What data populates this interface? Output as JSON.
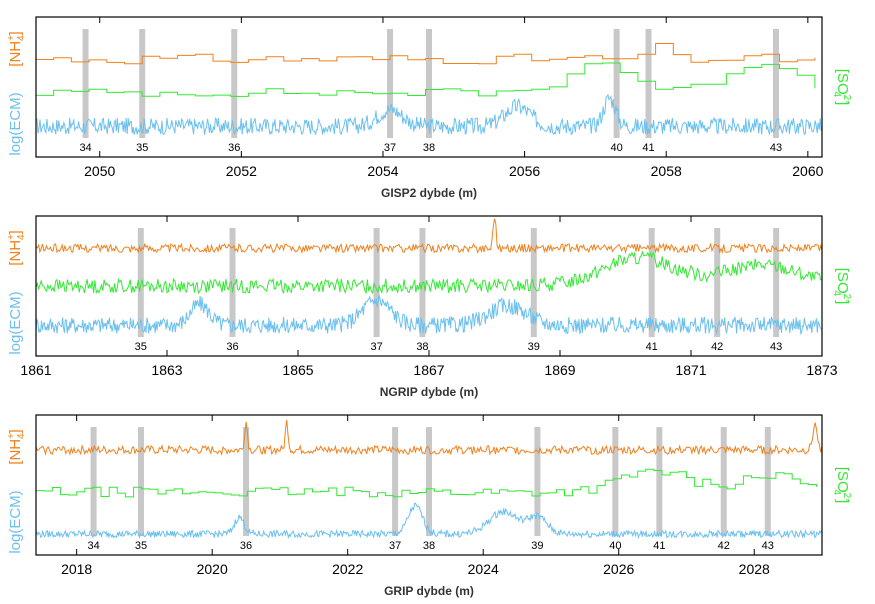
{
  "chart_data": [
    {
      "type": "line",
      "xlabel": "GISP2 dybde (m)",
      "xlim": [
        2049.1,
        2060.2
      ],
      "xticks": [
        2050,
        2052,
        2054,
        2056,
        2058,
        2060
      ],
      "left_labels": {
        "ecm": "log(ECM)",
        "nh4": "[NH4+]"
      },
      "right_label": "[SO4 2-]",
      "series": [
        {
          "name": "log(ECM)",
          "color": "#6cc0ef",
          "baseline": 0.22,
          "noise": 0.06,
          "step": 0.014,
          "bumps": [
            [
              2054.1,
              0.12,
              0.25
            ],
            [
              2055.9,
              0.14,
              0.25
            ],
            [
              2057.2,
              0.2,
              0.12
            ]
          ]
        },
        {
          "name": "[SO4 2-]",
          "color": "#33e833",
          "baseline": 0.46,
          "noise": 0.03,
          "step": 0.25,
          "bumps": [
            [
              2057.0,
              0.22,
              0.6
            ],
            [
              2059.3,
              0.22,
              0.7
            ]
          ]
        },
        {
          "name": "[NH4+]",
          "color": "#f0811d",
          "baseline": 0.7,
          "noise": 0.035,
          "step": 0.25,
          "bumps": [
            [
              2057.8,
              0.18,
              0.08
            ]
          ]
        }
      ],
      "events": [
        {
          "label": "34",
          "x": 2049.8
        },
        {
          "label": "35",
          "x": 2050.6
        },
        {
          "label": "36",
          "x": 2051.9
        },
        {
          "label": "37",
          "x": 2054.1
        },
        {
          "label": "38",
          "x": 2054.65
        },
        {
          "label": "40",
          "x": 2057.3
        },
        {
          "label": "41",
          "x": 2057.75
        },
        {
          "label": "43",
          "x": 2059.55
        }
      ]
    },
    {
      "type": "line",
      "xlabel": "NGRIP dybde (m)",
      "xlim": [
        1861,
        1873
      ],
      "xticks": [
        1861,
        1863,
        1865,
        1867,
        1869,
        1871,
        1873
      ],
      "left_labels": {
        "ecm": "log(ECM)",
        "nh4": "[NH4+]"
      },
      "right_label": "[SO4 2-]",
      "series": [
        {
          "name": "log(ECM)",
          "color": "#6cc0ef",
          "baseline": 0.22,
          "noise": 0.06,
          "step": 0.014,
          "bumps": [
            [
              1863.5,
              0.15,
              0.2
            ],
            [
              1866.2,
              0.18,
              0.3
            ],
            [
              1868.2,
              0.14,
              0.4
            ]
          ]
        },
        {
          "name": "[SO4 2-]",
          "color": "#33e833",
          "baseline": 0.5,
          "noise": 0.05,
          "step": 0.02,
          "bumps": [
            [
              1870.2,
              0.2,
              0.8
            ],
            [
              1872.1,
              0.15,
              0.8
            ]
          ]
        },
        {
          "name": "[NH4+]",
          "color": "#f0811d",
          "baseline": 0.77,
          "noise": 0.03,
          "step": 0.02,
          "bumps": [
            [
              1868.0,
              0.25,
              0.03
            ]
          ]
        }
      ],
      "events": [
        {
          "label": "35",
          "x": 1862.6
        },
        {
          "label": "36",
          "x": 1864.0
        },
        {
          "label": "37",
          "x": 1866.2
        },
        {
          "label": "38",
          "x": 1866.9
        },
        {
          "label": "39",
          "x": 1868.6
        },
        {
          "label": "41",
          "x": 1870.4
        },
        {
          "label": "42",
          "x": 1871.4
        },
        {
          "label": "43",
          "x": 1872.3
        }
      ]
    },
    {
      "type": "line",
      "xlabel": "GRIP dybde (m)",
      "xlim": [
        2017.4,
        2029.0
      ],
      "xticks": [
        2018,
        2020,
        2022,
        2024,
        2026,
        2028
      ],
      "left_labels": {
        "ecm": "log(ECM)",
        "nh4": "[NH4+]"
      },
      "right_label": "[SO4 2-]",
      "series": [
        {
          "name": "log(ECM)",
          "color": "#6cc0ef",
          "baseline": 0.15,
          "noise": 0.025,
          "step": 0.014,
          "bumps": [
            [
              2020.4,
              0.12,
              0.1
            ],
            [
              2023.0,
              0.2,
              0.15
            ],
            [
              2024.3,
              0.16,
              0.3
            ],
            [
              2024.8,
              0.12,
              0.2
            ]
          ]
        },
        {
          "name": "[SO4 2-]",
          "color": "#33e833",
          "baseline": 0.45,
          "noise": 0.035,
          "step": 0.12,
          "bumps": [
            [
              2026.5,
              0.15,
              0.7
            ],
            [
              2028.2,
              0.12,
              0.6
            ]
          ]
        },
        {
          "name": "[NH4+]",
          "color": "#f0811d",
          "baseline": 0.75,
          "noise": 0.03,
          "step": 0.02,
          "bumps": [
            [
              2020.5,
              0.2,
              0.03
            ],
            [
              2021.1,
              0.2,
              0.03
            ],
            [
              2028.9,
              0.18,
              0.05
            ]
          ]
        }
      ],
      "events": [
        {
          "label": "34",
          "x": 2018.25
        },
        {
          "label": "35",
          "x": 2018.95
        },
        {
          "label": "36",
          "x": 2020.5
        },
        {
          "label": "37",
          "x": 2022.7
        },
        {
          "label": "38",
          "x": 2023.2
        },
        {
          "label": "39",
          "x": 2024.8
        },
        {
          "label": "40",
          "x": 2025.95
        },
        {
          "label": "41",
          "x": 2026.6
        },
        {
          "label": "42",
          "x": 2027.55
        },
        {
          "label": "43",
          "x": 2028.2
        }
      ]
    }
  ]
}
